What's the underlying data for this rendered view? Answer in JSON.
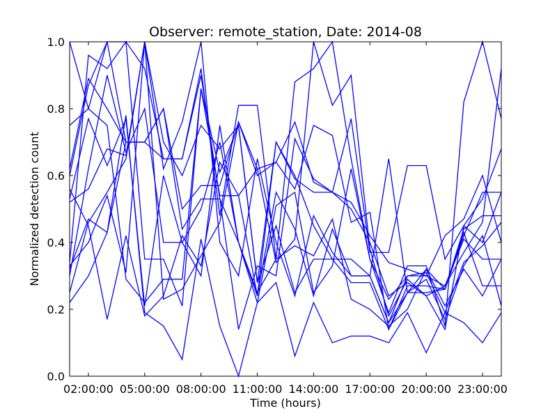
{
  "chart_data": {
    "type": "line",
    "title": "Observer: remote_station, Date: 2014-08",
    "xlabel": "Time (hours)",
    "ylabel": "Normalized detection count",
    "xlim": [
      1,
      24
    ],
    "ylim": [
      0.0,
      1.0
    ],
    "x_tick_values": [
      2,
      5,
      8,
      11,
      14,
      17,
      20,
      23
    ],
    "x_tick_labels": [
      "02:00:00",
      "05:00:00",
      "08:00:00",
      "11:00:00",
      "14:00:00",
      "17:00:00",
      "20:00:00",
      "23:00:00"
    ],
    "y_tick_values": [
      0.0,
      0.2,
      0.4,
      0.6,
      0.8,
      1.0
    ],
    "y_tick_labels": [
      "0.0",
      "0.2",
      "0.4",
      "0.6",
      "0.8",
      "1.0"
    ],
    "grid": false,
    "line_color": "#0000ff",
    "x": [
      1,
      2,
      3,
      4,
      5,
      6,
      7,
      8,
      9,
      10,
      11,
      12,
      13,
      14,
      15,
      16,
      17,
      18,
      19,
      20,
      21,
      22,
      23,
      24
    ],
    "series": [
      {
        "values": [
          1.0,
          0.8,
          0.75,
          0.29,
          0.22,
          0.29,
          0.29,
          0.86,
          0.61,
          0.75,
          0.28,
          0.7,
          0.59,
          0.55,
          0.55,
          0.5,
          0.4,
          0.24,
          0.28,
          0.24,
          0.14,
          0.45,
          0.4,
          0.55
        ]
      },
      {
        "values": [
          0.75,
          0.8,
          1.0,
          0.7,
          0.7,
          0.8,
          0.44,
          0.53,
          0.53,
          0.4,
          0.24,
          0.7,
          0.6,
          0.45,
          0.35,
          0.35,
          0.3,
          0.16,
          0.3,
          0.3,
          0.42,
          0.47,
          0.6,
          0.4
        ]
      },
      {
        "values": [
          0.6,
          0.87,
          1.0,
          1.0,
          0.92,
          0.65,
          0.65,
          0.92,
          0.48,
          0.81,
          0.81,
          0.35,
          0.88,
          0.92,
          1.0,
          0.65,
          0.35,
          0.19,
          0.33,
          0.33,
          0.15,
          0.82,
          1.0,
          0.77
        ]
      },
      {
        "values": [
          0.52,
          0.56,
          0.68,
          0.66,
          1.0,
          0.62,
          0.76,
          1.0,
          0.4,
          0.3,
          0.65,
          0.4,
          0.24,
          0.48,
          0.37,
          0.3,
          0.3,
          0.65,
          0.25,
          0.32,
          0.26,
          0.44,
          0.48,
          0.48
        ]
      },
      {
        "values": [
          0.34,
          0.96,
          0.92,
          1.0,
          0.35,
          0.35,
          0.21,
          0.86,
          0.54,
          0.54,
          0.62,
          0.34,
          0.41,
          1.0,
          0.81,
          0.9,
          0.38,
          0.18,
          0.29,
          0.24,
          0.27,
          0.37,
          0.46,
          0.92
        ]
      },
      {
        "values": [
          0.56,
          0.45,
          0.17,
          0.42,
          0.18,
          0.24,
          0.42,
          0.33,
          0.64,
          0.54,
          0.24,
          0.55,
          0.44,
          0.24,
          0.44,
          0.3,
          0.3,
          0.16,
          0.25,
          0.29,
          0.17,
          0.33,
          0.42,
          0.21
        ]
      },
      {
        "values": [
          0.22,
          0.3,
          0.43,
          0.78,
          0.19,
          0.15,
          0.05,
          0.41,
          0.15,
          0.0,
          0.22,
          0.28,
          0.06,
          0.22,
          0.1,
          0.12,
          0.12,
          0.1,
          0.19,
          0.07,
          0.19,
          0.16,
          0.1,
          0.19
        ]
      },
      {
        "values": [
          0.25,
          0.46,
          0.55,
          0.65,
          1.0,
          0.7,
          0.6,
          0.75,
          0.68,
          0.75,
          0.28,
          0.45,
          0.25,
          0.35,
          0.35,
          0.28,
          0.28,
          0.14,
          0.25,
          0.25,
          0.26,
          0.43,
          0.27,
          0.27
        ]
      },
      {
        "values": [
          0.53,
          0.77,
          0.63,
          0.77,
          0.21,
          0.6,
          0.4,
          0.5,
          0.7,
          0.4,
          0.25,
          0.35,
          0.39,
          0.36,
          0.47,
          0.23,
          0.2,
          0.15,
          0.2,
          0.32,
          0.21,
          0.32,
          0.24,
          0.35
        ]
      },
      {
        "values": [
          0.32,
          0.47,
          0.43,
          0.7,
          0.7,
          0.65,
          0.65,
          0.9,
          0.53,
          0.14,
          0.33,
          0.3,
          0.71,
          0.59,
          0.55,
          0.52,
          0.42,
          0.34,
          0.32,
          0.3,
          0.27,
          0.41,
          0.35,
          0.35
        ]
      },
      {
        "values": [
          0.3,
          0.62,
          0.9,
          0.67,
          0.8,
          0.4,
          0.4,
          0.3,
          0.75,
          0.4,
          0.22,
          0.51,
          0.55,
          0.25,
          0.33,
          0.62,
          0.35,
          0.23,
          0.3,
          0.31,
          0.19,
          0.34,
          0.39,
          0.46
        ]
      },
      {
        "values": [
          0.62,
          0.89,
          0.8,
          0.7,
          0.7,
          0.8,
          0.5,
          0.57,
          0.57,
          0.76,
          0.6,
          0.64,
          0.56,
          0.75,
          0.72,
          0.46,
          0.49,
          0.14,
          0.27,
          0.27,
          0.26,
          0.42,
          0.55,
          0.55
        ]
      },
      {
        "values": [
          0.33,
          0.4,
          0.54,
          0.31,
          1.0,
          0.23,
          0.26,
          0.36,
          0.46,
          0.76,
          0.62,
          0.64,
          0.76,
          0.58,
          0.55,
          0.77,
          0.37,
          0.37,
          0.63,
          0.63,
          0.35,
          0.45,
          0.53,
          0.68
        ]
      }
    ]
  }
}
